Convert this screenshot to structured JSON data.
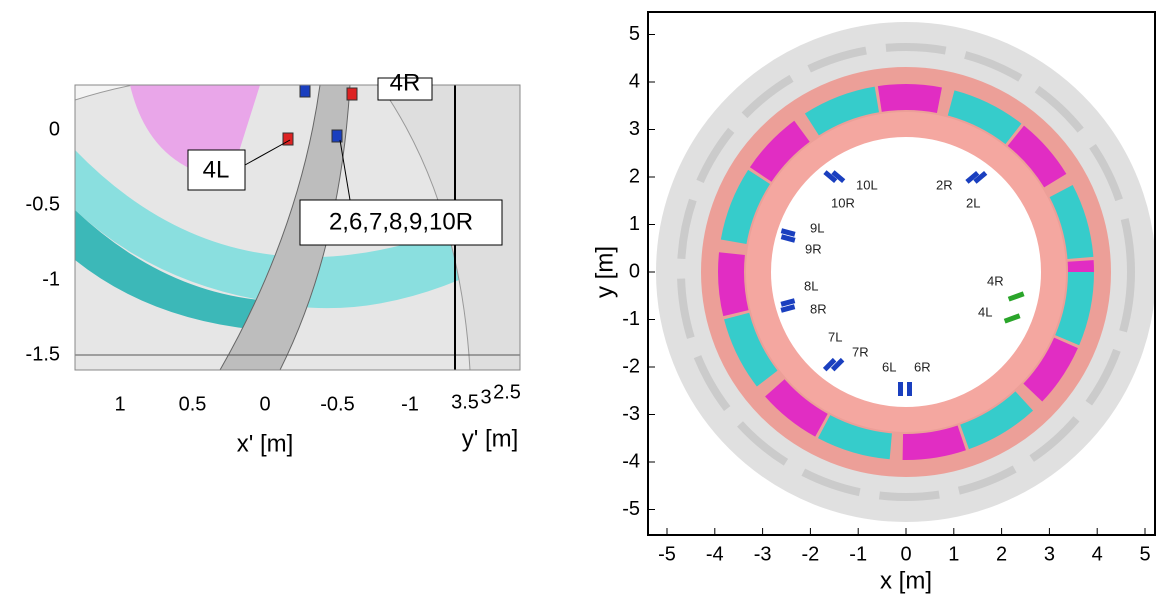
{
  "left_panel": {
    "yticks": [
      0,
      -0.5,
      -1,
      -1.5
    ],
    "xticks": [
      1,
      0.5,
      0,
      -0.5,
      -1
    ],
    "y2ticks": [
      3.5,
      3,
      2.5
    ],
    "xlabel": "x' [m]",
    "y2label": "y' [m]",
    "annotations": [
      "4R",
      "4L",
      "2,6,7,8,9,10R"
    ]
  },
  "right_panel": {
    "xticks": [
      -5,
      -4,
      -3,
      -2,
      -1,
      0,
      1,
      2,
      3,
      4,
      5
    ],
    "yticks": [
      5,
      4,
      3,
      2,
      1,
      0,
      -1,
      -2,
      -3,
      -4,
      -5
    ],
    "xlabel": "x [m]",
    "ylabel": "y [m]",
    "coil_labels": [
      "10L",
      "10R",
      "2R",
      "2L",
      "9L",
      "9R",
      "8L",
      "8R",
      "7L",
      "7R",
      "6L",
      "6R",
      "4R",
      "4L"
    ]
  }
}
